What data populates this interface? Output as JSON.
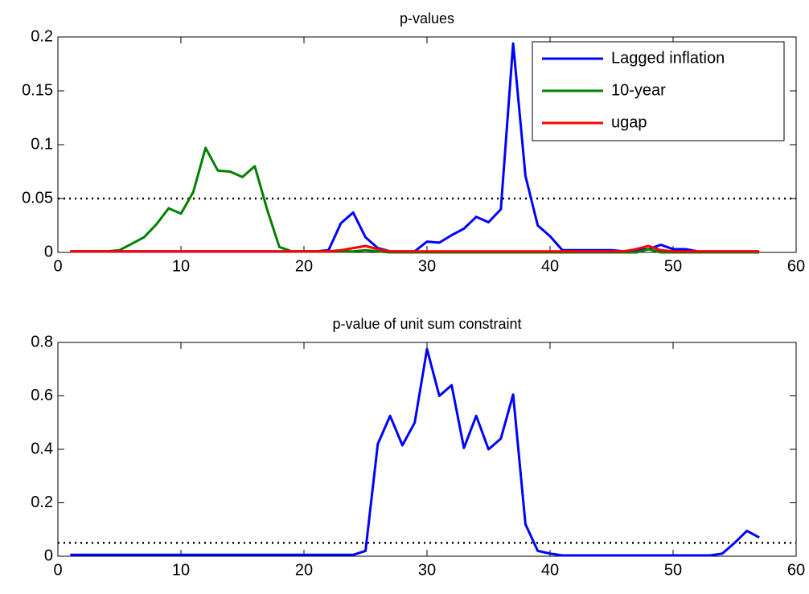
{
  "chart_data": [
    {
      "type": "line",
      "title": "p-values",
      "x": [
        1,
        2,
        3,
        4,
        5,
        6,
        7,
        8,
        9,
        10,
        11,
        12,
        13,
        14,
        15,
        16,
        17,
        18,
        19,
        20,
        21,
        22,
        23,
        24,
        25,
        26,
        27,
        28,
        29,
        30,
        31,
        32,
        33,
        34,
        35,
        36,
        37,
        38,
        39,
        40,
        41,
        42,
        43,
        44,
        45,
        46,
        47,
        48,
        49,
        50,
        51,
        52,
        53,
        54,
        55,
        56,
        57
      ],
      "series": [
        {
          "name": "Lagged inflation",
          "color": "#0000ff",
          "values": [
            0.001,
            0.001,
            0.001,
            0.001,
            0.001,
            0.001,
            0.001,
            0.001,
            0.001,
            0.001,
            0.001,
            0.001,
            0.001,
            0.001,
            0.001,
            0.001,
            0.001,
            0.001,
            0.001,
            0.001,
            0.001,
            0.002,
            0.027,
            0.037,
            0.014,
            0.004,
            0.001,
            0.001,
            0.001,
            0.01,
            0.009,
            0.016,
            0.022,
            0.033,
            0.028,
            0.04,
            0.194,
            0.071,
            0.025,
            0.015,
            0.002,
            0.002,
            0.002,
            0.002,
            0.002,
            0.001,
            0.002,
            0.003,
            0.007,
            0.003,
            0.003,
            0.001,
            0.001,
            0.001,
            0.001,
            0.001,
            0.001
          ]
        },
        {
          "name": "10-year",
          "color": "#008000",
          "values": [
            0.001,
            0.001,
            0.001,
            0.001,
            0.002,
            0.008,
            0.014,
            0.026,
            0.041,
            0.036,
            0.056,
            0.097,
            0.076,
            0.075,
            0.07,
            0.08,
            0.04,
            0.005,
            0.001,
            0.001,
            0.001,
            0.001,
            0.001,
            0.001,
            0.002,
            0.001,
            0,
            0,
            0,
            0,
            0,
            0,
            0,
            0,
            0,
            0,
            0,
            0,
            0,
            0,
            0,
            0,
            0,
            0,
            0,
            0,
            0,
            0.003,
            0,
            0,
            0,
            0,
            0,
            0,
            0,
            0,
            0
          ]
        },
        {
          "name": "ugap",
          "color": "#ff0000",
          "values": [
            0.001,
            0.001,
            0.001,
            0.001,
            0.001,
            0.001,
            0.001,
            0.001,
            0.001,
            0.001,
            0.001,
            0.001,
            0.001,
            0.001,
            0.001,
            0.001,
            0.001,
            0.001,
            0.001,
            0.001,
            0.001,
            0.001,
            0.002,
            0.004,
            0.006,
            0.003,
            0.001,
            0.001,
            0.001,
            0.001,
            0.001,
            0.001,
            0.001,
            0.001,
            0.001,
            0.001,
            0.001,
            0.001,
            0.001,
            0.001,
            0.001,
            0.001,
            0.001,
            0.001,
            0.001,
            0.001,
            0.003,
            0.006,
            0.002,
            0.001,
            0.001,
            0.001,
            0.001,
            0.001,
            0.001,
            0.001,
            0.001
          ]
        }
      ],
      "reference_line": 0.05,
      "xlim": [
        0,
        60
      ],
      "xticks": [
        0,
        10,
        20,
        30,
        40,
        50,
        60
      ],
      "ylim": [
        0,
        0.2
      ],
      "yticks": [
        0,
        0.05,
        0.1,
        0.15,
        0.2
      ],
      "legend": "top-right"
    },
    {
      "type": "line",
      "title": "p-value of unit sum constraint",
      "x": [
        1,
        2,
        3,
        4,
        5,
        6,
        7,
        8,
        9,
        10,
        11,
        12,
        13,
        14,
        15,
        16,
        17,
        18,
        19,
        20,
        21,
        22,
        23,
        24,
        25,
        26,
        27,
        28,
        29,
        30,
        31,
        32,
        33,
        34,
        35,
        36,
        37,
        38,
        39,
        40,
        41,
        42,
        43,
        44,
        45,
        46,
        47,
        48,
        49,
        50,
        51,
        52,
        53,
        54,
        55,
        56,
        57
      ],
      "series": [
        {
          "color": "#0000ff",
          "values": [
            0.005,
            0.005,
            0.005,
            0.005,
            0.005,
            0.005,
            0.005,
            0.005,
            0.005,
            0.005,
            0.005,
            0.005,
            0.005,
            0.005,
            0.005,
            0.005,
            0.005,
            0.005,
            0.005,
            0.005,
            0.005,
            0.005,
            0.005,
            0.005,
            0.02,
            0.42,
            0.525,
            0.415,
            0.5,
            0.775,
            0.6,
            0.64,
            0.405,
            0.525,
            0.4,
            0.44,
            0.605,
            0.12,
            0.02,
            0.01,
            0.003,
            0.003,
            0.003,
            0.003,
            0.003,
            0.003,
            0.003,
            0.003,
            0.003,
            0.003,
            0.003,
            0.003,
            0.003,
            0.01,
            0.05,
            0.095,
            0.07
          ]
        }
      ],
      "reference_line": 0.05,
      "xlim": [
        0,
        60
      ],
      "xticks": [
        0,
        10,
        20,
        30,
        40,
        50,
        60
      ],
      "ylim": [
        0,
        0.8
      ],
      "yticks": [
        0,
        0.2,
        0.4,
        0.6,
        0.8
      ]
    }
  ]
}
